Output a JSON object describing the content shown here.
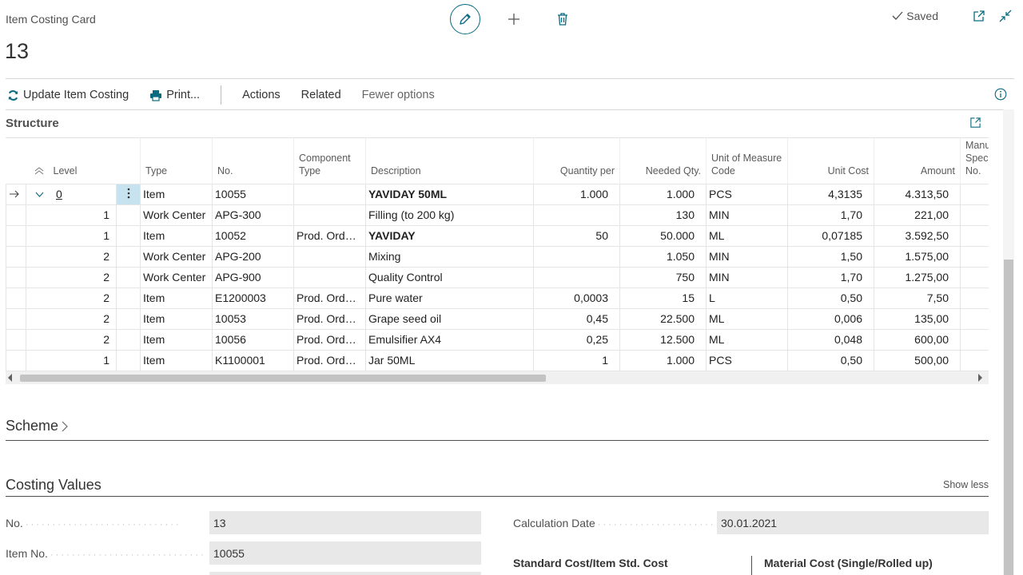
{
  "header": {
    "caption": "Item Costing Card",
    "record_no": "13",
    "saved_label": "Saved"
  },
  "actions": {
    "update": "Update Item Costing",
    "print": "Print...",
    "actions": "Actions",
    "related": "Related",
    "fewer": "Fewer options"
  },
  "structure": {
    "title": "Structure",
    "columns": {
      "level": "Level",
      "type": "Type",
      "no": "No.",
      "component_type": "Component Type",
      "description": "Description",
      "quantity_per": "Quantity per",
      "needed_qty": "Needed Qty.",
      "uom": "Unit of Measure Code",
      "unit_cost": "Unit Cost",
      "amount": "Amount",
      "manu": "Manufacturer Specification No."
    },
    "rows": [
      {
        "level": "0",
        "type": "Item",
        "no": "10055",
        "ctype": "",
        "desc": "YAVIDAY 50ML",
        "bold": true,
        "qper": "1.000",
        "needed": "1.000",
        "uom": "PCS",
        "ucost": "4,3135",
        "amount": "4.313,50"
      },
      {
        "level": "1",
        "type": "Work Center",
        "no": "APG-300",
        "ctype": "",
        "desc": "Filling (to 200 kg)",
        "bold": false,
        "qper": "",
        "needed": "130",
        "uom": "MIN",
        "ucost": "1,70",
        "amount": "221,00"
      },
      {
        "level": "1",
        "type": "Item",
        "no": "10052",
        "ctype": "Prod. Order...",
        "desc": "YAVIDAY",
        "bold": true,
        "qper": "50",
        "needed": "50.000",
        "uom": "ML",
        "ucost": "0,07185",
        "amount": "3.592,50"
      },
      {
        "level": "2",
        "type": "Work Center",
        "no": "APG-200",
        "ctype": "",
        "desc": "Mixing",
        "bold": false,
        "qper": "",
        "needed": "1.050",
        "uom": "MIN",
        "ucost": "1,50",
        "amount": "1.575,00"
      },
      {
        "level": "2",
        "type": "Work Center",
        "no": "APG-900",
        "ctype": "",
        "desc": "Quality Control",
        "bold": false,
        "qper": "",
        "needed": "750",
        "uom": "MIN",
        "ucost": "1,70",
        "amount": "1.275,00"
      },
      {
        "level": "2",
        "type": "Item",
        "no": "E1200003",
        "ctype": "Prod. Order...",
        "desc": "Pure water",
        "bold": false,
        "qper": "0,0003",
        "needed": "15",
        "uom": "L",
        "ucost": "0,50",
        "amount": "7,50"
      },
      {
        "level": "2",
        "type": "Item",
        "no": "10053",
        "ctype": "Prod. Order...",
        "desc": "Grape seed oil",
        "bold": false,
        "qper": "0,45",
        "needed": "22.500",
        "uom": "ML",
        "ucost": "0,006",
        "amount": "135,00"
      },
      {
        "level": "2",
        "type": "Item",
        "no": "10056",
        "ctype": "Prod. Order...",
        "desc": "Emulsifier AX4",
        "bold": false,
        "qper": "0,25",
        "needed": "12.500",
        "uom": "ML",
        "ucost": "0,048",
        "amount": "600,00"
      },
      {
        "level": "1",
        "type": "Item",
        "no": "K1100001",
        "ctype": "Prod. Order...",
        "desc": "Jar 50ML",
        "bold": false,
        "qper": "1",
        "needed": "1.000",
        "uom": "PCS",
        "ucost": "0,50",
        "amount": "500,00"
      }
    ]
  },
  "scheme": {
    "title": "Scheme"
  },
  "costing": {
    "title": "Costing Values",
    "show_less": "Show less",
    "no_label": "No.",
    "no_value": "13",
    "item_no_label": "Item No.",
    "item_no_value": "10055",
    "calc_date_label": "Calculation Date",
    "calc_date_value": "30.01.2021",
    "std_cost_heading": "Standard Cost/Item Std. Cost",
    "mat_cost_heading": "Material Cost (Single/Rolled up)"
  },
  "colors": {
    "accent": "#0b6a80",
    "selected_cell": "#c7e3ef"
  }
}
